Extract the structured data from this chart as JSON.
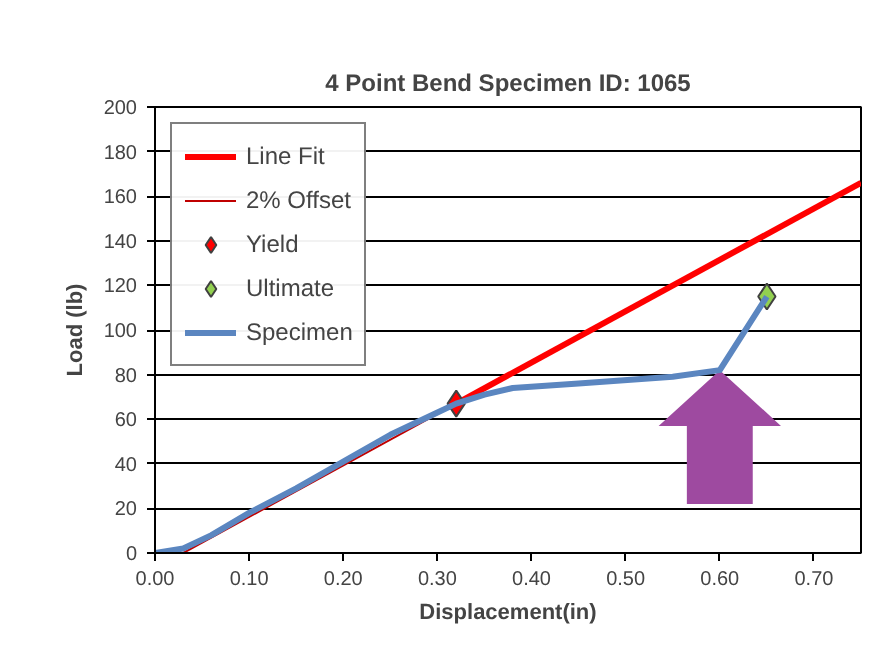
{
  "chart_data": {
    "type": "line",
    "title": "4 Point Bend Specimen ID: 1065",
    "xlabel": "Displacement(in)",
    "ylabel": "Load (lb)",
    "series": [
      {
        "name": "Line Fit",
        "color": "#ff0000",
        "x": [
          0.32,
          0.75
        ],
        "values": [
          67,
          166
        ]
      },
      {
        "name": "2% Offset",
        "color": "#c00000",
        "x": [
          0.03,
          0.32
        ],
        "values": [
          0,
          67
        ]
      },
      {
        "name": "Yield",
        "type": "scatter",
        "marker": "diamond",
        "color": "#ff0000",
        "x": [
          0.32
        ],
        "values": [
          67
        ]
      },
      {
        "name": "Ultimate",
        "type": "scatter",
        "marker": "diamond",
        "color": "#92d050",
        "x": [
          0.65
        ],
        "values": [
          115
        ]
      },
      {
        "name": "Specimen",
        "color": "#5b86c0",
        "x": [
          0,
          0.03,
          0.06,
          0.1,
          0.15,
          0.2,
          0.25,
          0.3,
          0.32,
          0.35,
          0.38,
          0.45,
          0.55,
          0.6,
          0.65
        ],
        "values": [
          0,
          2,
          8,
          18,
          29,
          41,
          53,
          63,
          67,
          71,
          74,
          76,
          79,
          82,
          115
        ]
      }
    ],
    "xlim": [
      0,
      0.75
    ],
    "ylim": [
      0,
      200
    ],
    "xticks": [
      {
        "value": 0,
        "label": "0.00"
      },
      {
        "value": 0.1,
        "label": "0.10"
      },
      {
        "value": 0.2,
        "label": "0.20"
      },
      {
        "value": 0.3,
        "label": "0.30"
      },
      {
        "value": 0.4,
        "label": "0.40"
      },
      {
        "value": 0.5,
        "label": "0.50"
      },
      {
        "value": 0.6,
        "label": "0.60"
      },
      {
        "value": 0.7,
        "label": "0.70"
      }
    ],
    "yticks": [
      0,
      20,
      40,
      60,
      80,
      100,
      120,
      140,
      160,
      180,
      200
    ],
    "grid": "y",
    "legend": "top left"
  }
}
